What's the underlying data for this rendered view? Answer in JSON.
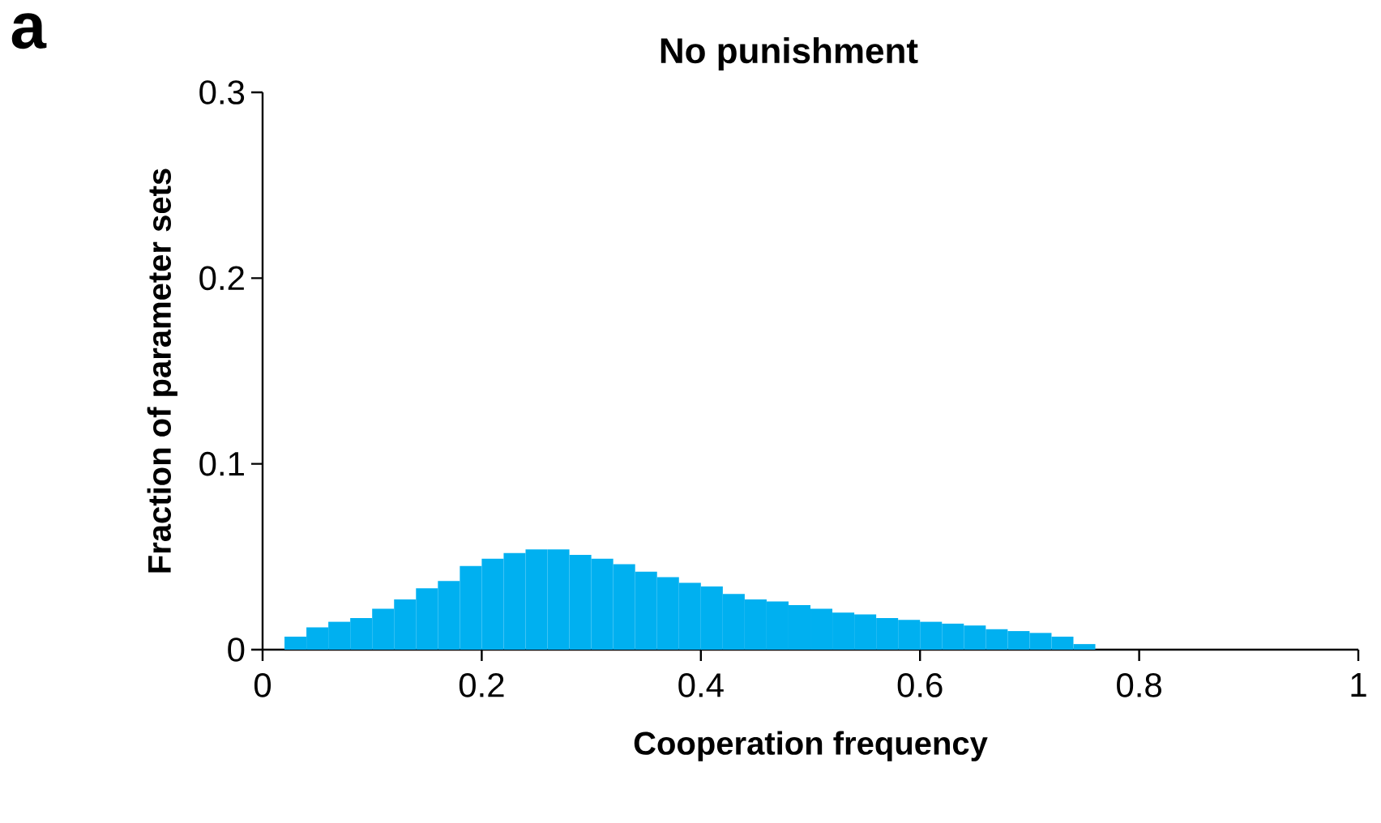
{
  "chart_data": {
    "type": "histogram",
    "title": "No punishment",
    "xlabel": "Cooperation frequency",
    "ylabel": "Fraction of parameter sets",
    "annotations": [
      "a"
    ],
    "bins": [
      0.02,
      0.04,
      0.06,
      0.08,
      0.1,
      0.12,
      0.14,
      0.16,
      0.18,
      0.2,
      0.22,
      0.24,
      0.26,
      0.28,
      0.3,
      0.32,
      0.34,
      0.36,
      0.38,
      0.4,
      0.42,
      0.44,
      0.46,
      0.48,
      0.5,
      0.52,
      0.54,
      0.56,
      0.58,
      0.6,
      0.62,
      0.64,
      0.66,
      0.68,
      0.7,
      0.72,
      0.74,
      0.76
    ],
    "values": [
      0.007,
      0.012,
      0.015,
      0.017,
      0.022,
      0.027,
      0.033,
      0.037,
      0.045,
      0.049,
      0.052,
      0.054,
      0.054,
      0.051,
      0.049,
      0.046,
      0.042,
      0.039,
      0.036,
      0.034,
      0.03,
      0.027,
      0.026,
      0.024,
      0.022,
      0.02,
      0.019,
      0.017,
      0.016,
      0.015,
      0.014,
      0.013,
      0.011,
      0.01,
      0.009,
      0.007,
      0.003
    ],
    "color": "#00b0f0",
    "xlim": [
      0,
      1
    ],
    "ylim": [
      0,
      0.3
    ],
    "xticks": [
      0,
      0.2,
      0.4,
      0.6,
      0.8,
      1
    ],
    "yticks": [
      0,
      0.1,
      0.2,
      0.3
    ],
    "grid": false
  }
}
